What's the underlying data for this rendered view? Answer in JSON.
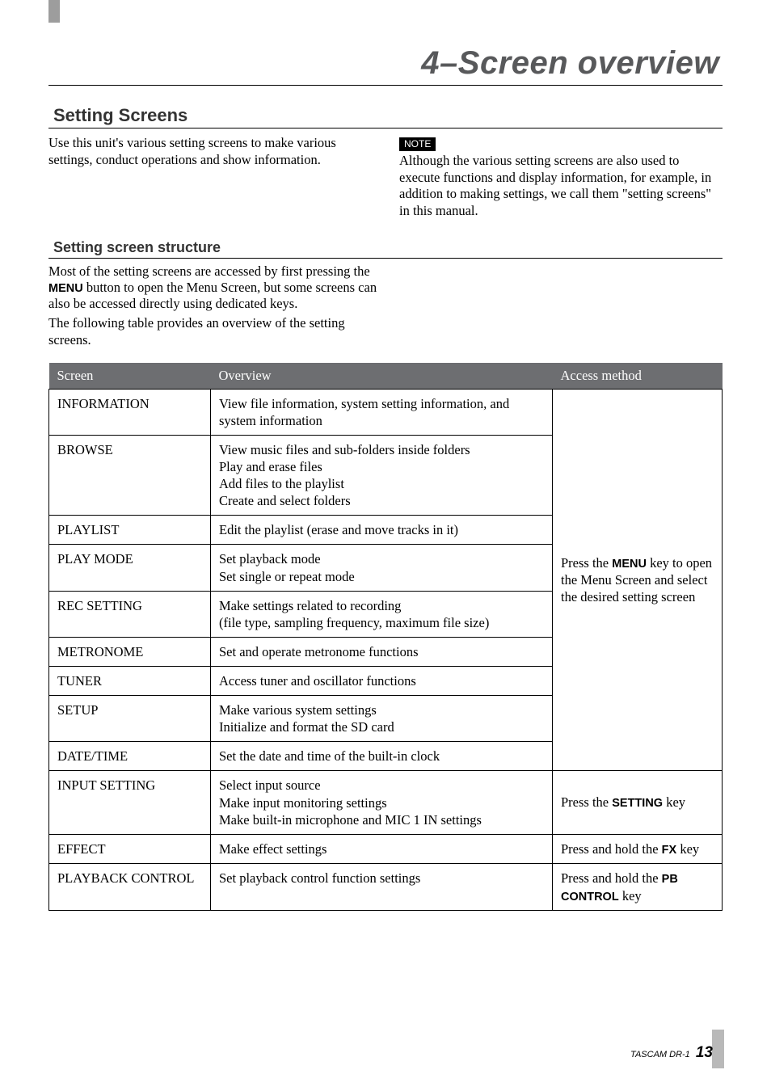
{
  "banner": "4–Screen overview",
  "section1_title": "Setting Screens",
  "intro_left": "Use this unit's various setting screens to make various settings, conduct operations and show information.",
  "note_label": "NOTE",
  "intro_right": "Although the various setting screens are also used to execute functions and display information, for example, in addition to making settings, we call them \"setting screens\" in this manual.",
  "section2_title": "Setting screen structure",
  "sub_p1_a": "Most of the setting screens are accessed by first pressing the ",
  "sub_p1_key": "MENU",
  "sub_p1_b": " button to open the Menu Screen, but some screens can also be accessed directly using dedicated keys.",
  "sub_p2": "The following table provides an overview of the setting screens.",
  "table": {
    "headers": [
      "Screen",
      "Overview",
      "Access method"
    ],
    "group1_access_a": "Press the ",
    "group1_access_key": "MENU",
    "group1_access_b": " key to open the Menu Screen and select the desired setting screen",
    "rows": [
      {
        "screen": "INFORMATION",
        "overview": [
          "View file information, system setting information, and system information"
        ]
      },
      {
        "screen": "BROWSE",
        "overview": [
          "View music files and sub-folders inside folders",
          "Play and erase files",
          "Add files to the playlist",
          "Create and select folders"
        ]
      },
      {
        "screen": "PLAYLIST",
        "overview": [
          "Edit the playlist (erase and move tracks in it)"
        ]
      },
      {
        "screen": "PLAY MODE",
        "overview": [
          "Set playback mode",
          "Set single or repeat mode"
        ]
      },
      {
        "screen": "REC SETTING",
        "overview": [
          "Make settings related to recording",
          "(file type, sampling frequency, maximum file size)"
        ]
      },
      {
        "screen": "METRONOME",
        "overview": [
          "Set and operate metronome functions"
        ]
      },
      {
        "screen": "TUNER",
        "overview": [
          "Access tuner and oscillator functions"
        ]
      },
      {
        "screen": "SETUP",
        "overview": [
          "Make various system settings",
          "Initialize and format the SD card"
        ]
      },
      {
        "screen": "DATE/TIME",
        "overview": [
          "Set the date and time of the built-in clock"
        ]
      }
    ],
    "row_input": {
      "screen": "INPUT SETTING",
      "overview": [
        "Select input source",
        "Make input monitoring settings",
        "Make built-in microphone and MIC 1 IN settings"
      ],
      "access_a": "Press the ",
      "access_key": "SETTING",
      "access_b": " key"
    },
    "row_effect": {
      "screen": "EFFECT",
      "overview": [
        "Make effect settings"
      ],
      "access_a": "Press and hold the ",
      "access_key": "FX",
      "access_b": " key"
    },
    "row_playback": {
      "screen": "PLAYBACK CONTROL",
      "overview": [
        "Set playback control function settings"
      ],
      "access_a": "Press and hold the ",
      "access_key": "PB CONTROL",
      "access_b": " key"
    }
  },
  "footer_model": "TASCAM DR-1",
  "footer_page": "13"
}
